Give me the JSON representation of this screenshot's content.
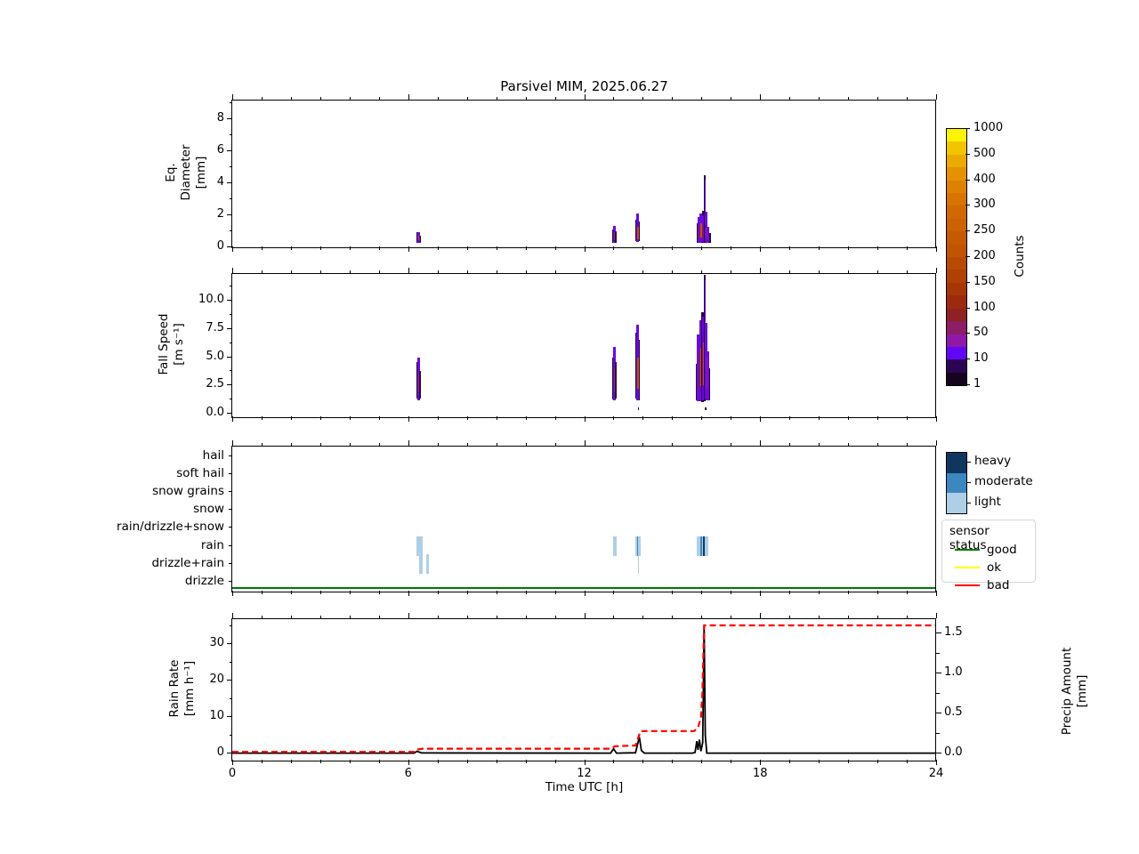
{
  "title": "Parsivel MIM, 2025.06.27",
  "xaxis": {
    "label": "Time UTC [h]",
    "range_h": [
      0,
      24
    ],
    "major_ticks": [
      0,
      6,
      12,
      18,
      24
    ],
    "minor_tick_every_h": 1
  },
  "palette": {
    "bar_colors": {
      "e": "#2a0733",
      "v": "#6c08e0",
      "m": "#a01f9a",
      "r": "#8f2125",
      "o": "#c45206"
    },
    "intensity": {
      "light": "#aecfe6",
      "moderate": "#3d87c0",
      "heavy": "#10365f"
    },
    "sensor": {
      "good": "#007700",
      "ok": "#ffff00",
      "bad": "#ff0000"
    },
    "rain_rate_line": "#000000",
    "precip_amount_line": "#ff0000"
  },
  "colorbar": {
    "label": "Counts",
    "tick_labels_bottom_to_top": [
      "1",
      "10",
      "50",
      "100",
      "150",
      "200",
      "250",
      "300",
      "400",
      "500",
      "1000"
    ],
    "cells_top_to_bottom": [
      "#fcf403",
      "#f3c400",
      "#ecaa01",
      "#e59201",
      "#dd8101",
      "#d77402",
      "#d06903",
      "#cb6203",
      "#c55a03",
      "#c05304",
      "#b84a04",
      "#b04105",
      "#a63607",
      "#9c2b0e",
      "#8f2125",
      "#8d1d64",
      "#9018a8",
      "#6207f5",
      "#2b0553",
      "#16031f"
    ]
  },
  "intensity_legend": {
    "items": [
      {
        "label": "heavy",
        "key": "heavy"
      },
      {
        "label": "moderate",
        "key": "moderate"
      },
      {
        "label": "light",
        "key": "light"
      }
    ]
  },
  "sensor_legend": {
    "title": "sensor status",
    "items": [
      {
        "label": "good",
        "key": "good"
      },
      {
        "label": "ok",
        "key": "ok"
      },
      {
        "label": "bad",
        "key": "bad"
      }
    ]
  },
  "chart_data": [
    {
      "id": "eq_diameter",
      "type": "heatmap",
      "ylabel_lines": [
        "Eq.",
        "Diameter",
        "[mm]"
      ],
      "ylim": [
        0,
        9.17
      ],
      "yticks": [
        0,
        2,
        4,
        6,
        8
      ],
      "ytick_labels": [
        "0",
        "2",
        "4",
        "6",
        "8"
      ],
      "yticks_minor": [
        1,
        3,
        5,
        7,
        9
      ],
      "bars_note": "columns: x_hour, width_hour, y0_mm, y1_mm, color_key (counts colormap)",
      "bars": [
        [
          6.27,
          0.07,
          0.3,
          0.95,
          "e"
        ],
        [
          6.3,
          0.11,
          0.25,
          0.92,
          "v"
        ],
        [
          6.33,
          0.05,
          0.45,
          0.75,
          "o"
        ],
        [
          6.39,
          0.04,
          0.3,
          0.7,
          "e"
        ],
        [
          12.94,
          0.06,
          0.3,
          1.1,
          "e"
        ],
        [
          12.97,
          0.1,
          0.27,
          1.35,
          "v"
        ],
        [
          13.0,
          0.05,
          0.5,
          0.95,
          "m"
        ],
        [
          13.05,
          0.04,
          0.3,
          1.0,
          "e"
        ],
        [
          13.73,
          0.05,
          0.4,
          1.7,
          "e"
        ],
        [
          13.76,
          0.1,
          0.35,
          2.1,
          "v"
        ],
        [
          13.79,
          0.06,
          0.5,
          1.3,
          "o"
        ],
        [
          13.85,
          0.04,
          0.4,
          1.6,
          "e"
        ],
        [
          15.83,
          0.06,
          0.3,
          1.5,
          "e"
        ],
        [
          15.86,
          0.1,
          0.27,
          1.9,
          "v"
        ],
        [
          15.89,
          0.06,
          0.5,
          1.2,
          "r"
        ],
        [
          15.94,
          0.1,
          0.3,
          2.1,
          "v"
        ],
        [
          15.97,
          0.05,
          0.6,
          1.5,
          "o"
        ],
        [
          16.01,
          0.08,
          0.3,
          2.3,
          "e"
        ],
        [
          16.03,
          0.08,
          0.35,
          2.0,
          "v"
        ],
        [
          16.05,
          0.05,
          0.5,
          1.4,
          "r"
        ],
        [
          16.09,
          0.05,
          0.3,
          4.5,
          "e"
        ],
        [
          16.1,
          0.04,
          0.4,
          4.2,
          "v"
        ],
        [
          16.14,
          0.08,
          0.3,
          2.2,
          "v"
        ],
        [
          16.17,
          0.04,
          0.5,
          1.2,
          "m"
        ],
        [
          16.21,
          0.06,
          0.3,
          1.3,
          "v"
        ],
        [
          16.27,
          0.05,
          0.3,
          0.9,
          "e"
        ]
      ]
    },
    {
      "id": "fall_speed",
      "type": "heatmap",
      "ylabel_lines": [
        "Fall Speed",
        "[m s⁻¹]"
      ],
      "ylim": [
        -0.3,
        12.4
      ],
      "yticks": [
        0,
        2.5,
        5,
        7.5,
        10
      ],
      "ytick_labels": [
        "0.0",
        "2.5",
        "5.0",
        "7.5",
        "10.0"
      ],
      "yticks_minor": [
        1.25,
        3.75,
        6.25,
        8.75,
        11.25
      ],
      "bars": [
        [
          6.27,
          0.06,
          1.3,
          4.6,
          "e"
        ],
        [
          6.3,
          0.1,
          1.15,
          5.0,
          "v"
        ],
        [
          6.33,
          0.04,
          2.0,
          3.4,
          "m"
        ],
        [
          6.38,
          0.04,
          1.3,
          3.8,
          "e"
        ],
        [
          12.94,
          0.06,
          1.3,
          5.0,
          "e"
        ],
        [
          12.97,
          0.1,
          1.2,
          5.9,
          "v"
        ],
        [
          13.0,
          0.05,
          2.0,
          4.0,
          "m"
        ],
        [
          13.05,
          0.04,
          1.3,
          4.6,
          "e"
        ],
        [
          13.73,
          0.06,
          1.3,
          7.2,
          "e"
        ],
        [
          13.76,
          0.1,
          1.15,
          7.9,
          "v"
        ],
        [
          13.79,
          0.06,
          2.2,
          5.0,
          "o"
        ],
        [
          13.85,
          0.04,
          1.2,
          6.5,
          "e"
        ],
        [
          13.83,
          0.05,
          0.28,
          0.55,
          "e"
        ],
        [
          15.82,
          0.05,
          1.2,
          4.4,
          "e"
        ],
        [
          15.85,
          0.1,
          1.1,
          7.0,
          "v"
        ],
        [
          15.89,
          0.06,
          2.3,
          5.3,
          "r"
        ],
        [
          15.93,
          0.1,
          1.1,
          8.3,
          "v"
        ],
        [
          15.96,
          0.06,
          2.4,
          5.8,
          "o"
        ],
        [
          16.0,
          0.08,
          1.05,
          9.0,
          "e"
        ],
        [
          16.02,
          0.08,
          1.2,
          8.6,
          "v"
        ],
        [
          16.05,
          0.05,
          2.5,
          6.3,
          "o"
        ],
        [
          16.08,
          0.05,
          1.1,
          12.3,
          "e"
        ],
        [
          16.1,
          0.04,
          1.3,
          11.8,
          "v"
        ],
        [
          16.13,
          0.08,
          1.2,
          8.0,
          "v"
        ],
        [
          16.16,
          0.04,
          2.2,
          5.0,
          "m"
        ],
        [
          16.2,
          0.06,
          1.2,
          5.5,
          "v"
        ],
        [
          16.26,
          0.05,
          1.2,
          4.0,
          "e"
        ],
        [
          16.11,
          0.04,
          0.28,
          0.55,
          "e"
        ]
      ]
    },
    {
      "id": "precip_type",
      "type": "categorical-timeline",
      "categories": [
        "hail",
        "soft hail",
        "snow grains",
        "snow",
        "rain/drizzle+snow",
        "rain",
        "drizzle+rain",
        "drizzle"
      ],
      "marks_note": "x_hour, width_hour, category, intensity",
      "marks": [
        {
          "x": 6.28,
          "w": 0.22,
          "row": "rain",
          "intensity": "light"
        },
        {
          "x": 6.36,
          "w": 0.13,
          "row": "drizzle+rain",
          "intensity": "light"
        },
        {
          "x": 6.62,
          "w": 0.1,
          "row": "drizzle+rain",
          "intensity": "light"
        },
        {
          "x": 12.97,
          "w": 0.14,
          "row": "rain",
          "intensity": "light"
        },
        {
          "x": 13.73,
          "w": 0.1,
          "row": "rain",
          "intensity": "light"
        },
        {
          "x": 13.8,
          "w": 0.07,
          "row": "rain",
          "intensity": "moderate"
        },
        {
          "x": 13.84,
          "w": 0.09,
          "row": "rain",
          "intensity": "light"
        },
        {
          "x": 13.82,
          "w": 0.03,
          "row": "drizzle+rain",
          "intensity": "light"
        },
        {
          "x": 15.85,
          "w": 0.15,
          "row": "rain",
          "intensity": "light"
        },
        {
          "x": 15.95,
          "w": 0.1,
          "row": "rain",
          "intensity": "moderate"
        },
        {
          "x": 16.01,
          "w": 0.05,
          "row": "rain",
          "intensity": "light"
        },
        {
          "x": 16.04,
          "w": 0.09,
          "row": "rain",
          "intensity": "heavy"
        },
        {
          "x": 16.1,
          "w": 0.14,
          "row": "rain",
          "intensity": "light"
        }
      ],
      "sensor_status_line": {
        "value": "good",
        "x0": 0,
        "x1": 24
      }
    },
    {
      "id": "rain_rate_precip",
      "type": "line",
      "ylabel_lines": [
        "Rain Rate",
        "[mm h⁻¹]"
      ],
      "ylim": [
        0,
        36.8
      ],
      "yticks": [
        0,
        10,
        20,
        30
      ],
      "ytick_labels": [
        "0",
        "10",
        "20",
        "30"
      ],
      "yticks_minor": [
        5,
        15,
        25,
        35
      ],
      "y2label_lines": [
        "Precip Amount",
        "[mm]"
      ],
      "y2lim": [
        0,
        1.68
      ],
      "y2ticks": [
        0,
        0.5,
        1.0,
        1.5
      ],
      "y2tick_labels": [
        "0.0",
        "0.5",
        "1.0",
        "1.5"
      ],
      "y2ticks_minor": [
        0.25,
        0.75,
        1.25
      ],
      "series": [
        {
          "name": "rain_rate",
          "axis": "left",
          "style": "solid",
          "points": [
            [
              0,
              0.1
            ],
            [
              6.2,
              0.1
            ],
            [
              6.3,
              0.6
            ],
            [
              6.45,
              0.15
            ],
            [
              12.9,
              0.1
            ],
            [
              13.0,
              1.3
            ],
            [
              13.1,
              0.1
            ],
            [
              13.75,
              0.2
            ],
            [
              13.88,
              4.5
            ],
            [
              13.95,
              0.8
            ],
            [
              14.05,
              0.1
            ],
            [
              15.7,
              0.1
            ],
            [
              15.78,
              0.3
            ],
            [
              15.84,
              3.4
            ],
            [
              15.88,
              1.0
            ],
            [
              15.93,
              3.8
            ],
            [
              15.98,
              0.6
            ],
            [
              16.04,
              3.0
            ],
            [
              16.09,
              35.0
            ],
            [
              16.13,
              5.0
            ],
            [
              16.18,
              0.1
            ],
            [
              24,
              0.1
            ]
          ]
        },
        {
          "name": "precip_amount",
          "axis": "right",
          "style": "dashed",
          "points": [
            [
              0,
              0.02
            ],
            [
              6.22,
              0.02
            ],
            [
              6.32,
              0.05
            ],
            [
              6.5,
              0.06
            ],
            [
              12.9,
              0.06
            ],
            [
              13.05,
              0.09
            ],
            [
              13.75,
              0.1
            ],
            [
              13.92,
              0.28
            ],
            [
              15.75,
              0.28
            ],
            [
              15.88,
              0.32
            ],
            [
              15.98,
              0.45
            ],
            [
              16.03,
              0.75
            ],
            [
              16.09,
              1.6
            ],
            [
              24,
              1.6
            ]
          ]
        }
      ]
    }
  ]
}
